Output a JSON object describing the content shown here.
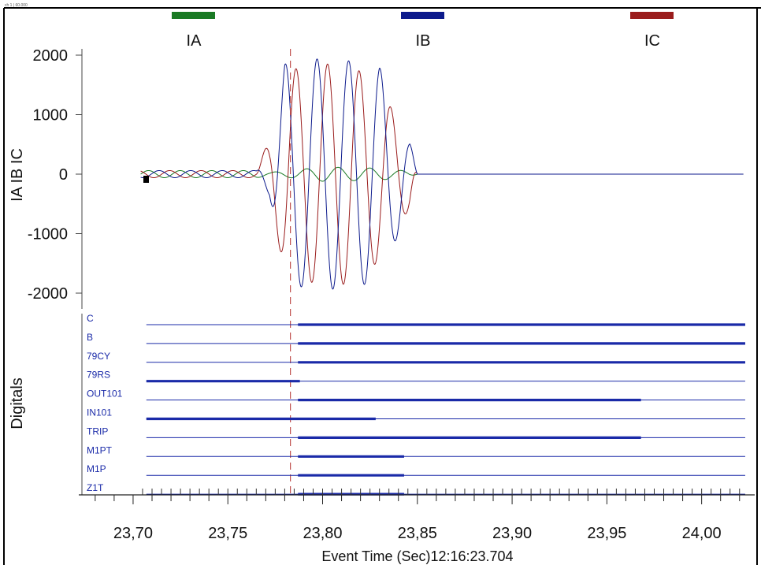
{
  "header": {
    "corner_text": "ch 1 | 60.000"
  },
  "chart_data": {
    "type": "line",
    "title": "",
    "ylabel": "IA IB IC",
    "xlabel": "Event Time (Sec)12:16:23.704",
    "ylim": [
      -2300,
      2300
    ],
    "xlim": [
      23.673,
      24.028
    ],
    "yticks": [
      2000,
      1000,
      0,
      -1000,
      -2000
    ],
    "ytick_labels": [
      "2000",
      "1000",
      "0",
      "-1000",
      "-2000"
    ],
    "xticks": [
      23.7,
      23.75,
      23.8,
      23.85,
      23.9,
      23.95,
      24.0
    ],
    "xtick_labels": [
      "23,70",
      "23,75",
      "23,80",
      "23,85",
      "23,90",
      "23,95",
      "24,00"
    ],
    "cursor_x": 23.783,
    "legend": [
      {
        "name": "IA",
        "color": "#1a7a24"
      },
      {
        "name": "IB",
        "color": "#0c1a8c"
      },
      {
        "name": "IC",
        "color": "#9a1c1c"
      }
    ],
    "frequency_hz": 60,
    "series": [
      {
        "name": "IA",
        "color": "#1a7a24",
        "phase_deg": 0,
        "envelope": [
          [
            23.704,
            60
          ],
          [
            23.765,
            60
          ],
          [
            23.772,
            30
          ],
          [
            23.783,
            60
          ],
          [
            23.8,
            120
          ],
          [
            23.83,
            100
          ],
          [
            23.845,
            50
          ],
          [
            23.85,
            0
          ],
          [
            24.022,
            0
          ]
        ]
      },
      {
        "name": "IB",
        "color": "#0c1a8c",
        "phase_deg": -120,
        "envelope": [
          [
            23.704,
            60
          ],
          [
            23.765,
            60
          ],
          [
            23.772,
            350
          ],
          [
            23.776,
            1100
          ],
          [
            23.78,
            1850
          ],
          [
            23.8,
            1950
          ],
          [
            23.815,
            1900
          ],
          [
            23.83,
            1800
          ],
          [
            23.84,
            1000
          ],
          [
            23.846,
            550
          ],
          [
            23.85,
            0
          ],
          [
            24.022,
            0
          ]
        ]
      },
      {
        "name": "IC",
        "color": "#9a1c1c",
        "phase_deg": 120,
        "envelope": [
          [
            23.704,
            60
          ],
          [
            23.765,
            60
          ],
          [
            23.772,
            600
          ],
          [
            23.776,
            1100
          ],
          [
            23.782,
            1750
          ],
          [
            23.8,
            1850
          ],
          [
            23.815,
            1850
          ],
          [
            23.83,
            1450
          ],
          [
            23.84,
            900
          ],
          [
            23.846,
            550
          ],
          [
            23.85,
            0
          ],
          [
            24.022,
            0
          ]
        ]
      }
    ]
  },
  "digitals": {
    "axis_label": "Digitals",
    "x_start": 23.707,
    "x_end": 24.023,
    "channels": [
      {
        "name": "C",
        "active": [
          [
            23.787,
            24.023
          ]
        ]
      },
      {
        "name": "B",
        "active": [
          [
            23.787,
            24.023
          ]
        ]
      },
      {
        "name": "79CY",
        "active": [
          [
            23.787,
            24.023
          ]
        ]
      },
      {
        "name": "79RS",
        "active": [
          [
            23.707,
            23.788
          ]
        ]
      },
      {
        "name": "OUT101",
        "active": [
          [
            23.787,
            23.968
          ]
        ]
      },
      {
        "name": "IN101",
        "active": [
          [
            23.707,
            23.828
          ]
        ]
      },
      {
        "name": "TRIP",
        "active": [
          [
            23.787,
            23.968
          ]
        ]
      },
      {
        "name": "M1PT",
        "active": [
          [
            23.787,
            23.843
          ]
        ]
      },
      {
        "name": "M1P",
        "active": [
          [
            23.787,
            23.843
          ]
        ]
      },
      {
        "name": "Z1T",
        "active": [
          [
            23.787,
            23.843
          ]
        ]
      }
    ]
  }
}
